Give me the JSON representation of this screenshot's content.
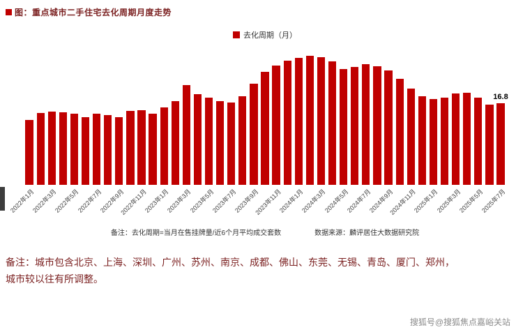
{
  "page": {
    "title": "图：重点城市二手住宅去化周期月度走势",
    "notes_line1": "备注：城市包含北京、上海、深圳、广州、苏州、南京、成都、佛山、东莞、无锡、青岛、厦门、郑州，",
    "notes_line2": "城市较以往有所调整。",
    "watermark": "搜狐号@搜狐焦点嘉峪关站"
  },
  "chart_data": {
    "type": "bar",
    "title": "重点城市二手住宅去化周期月度走势",
    "legend": "去化周期（月）",
    "xlabel": "",
    "ylabel": "",
    "ylim": [
      0,
      28
    ],
    "grid": false,
    "legend_position": "top-center",
    "bar_color": "#c00000",
    "tick_every": 2,
    "categories": [
      "2022年1月",
      "2022年2月",
      "2022年3月",
      "2022年4月",
      "2022年5月",
      "2022年6月",
      "2022年7月",
      "2022年8月",
      "2022年9月",
      "2022年10月",
      "2022年11月",
      "2022年12月",
      "2023年1月",
      "2023年2月",
      "2023年3月",
      "2023年4月",
      "2023年5月",
      "2023年6月",
      "2023年7月",
      "2023年8月",
      "2023年9月",
      "2023年10月",
      "2023年11月",
      "2023年12月",
      "2024年1月",
      "2024年2月",
      "2024年3月",
      "2024年4月",
      "2024年5月",
      "2024年6月",
      "2024年7月",
      "2024年8月",
      "2024年9月",
      "2024年10月",
      "2024年11月",
      "2024年12月",
      "2025年1月",
      "2025年2月",
      "2025年3月",
      "2025年4月",
      "2025年5月",
      "2025年6月",
      "2025年7月"
    ],
    "values": [
      13.3,
      14.8,
      15.1,
      14.9,
      14.6,
      13.9,
      14.7,
      14.3,
      14.0,
      15.2,
      15.4,
      14.7,
      16.0,
      17.3,
      20.5,
      18.6,
      17.9,
      17.3,
      16.9,
      18.2,
      20.8,
      23.2,
      24.6,
      25.6,
      26.2,
      26.6,
      26.3,
      25.4,
      23.9,
      24.3,
      24.9,
      24.4,
      23.6,
      21.8,
      19.8,
      18.3,
      17.6,
      18.0,
      18.8,
      18.9,
      17.9,
      16.5,
      16.8
    ],
    "last_value_label": "16.8",
    "footnote_left": "备注：去化周期=当月在售挂牌量/近6个月平均成交套数",
    "footnote_right": "数据来源：麟评居住大数据研究院"
  },
  "colors": {
    "bar": "#c00000",
    "title_text": "#7a1f1f",
    "notes_text": "#7a1f1f",
    "watermark_text": "#8a8a8a"
  }
}
